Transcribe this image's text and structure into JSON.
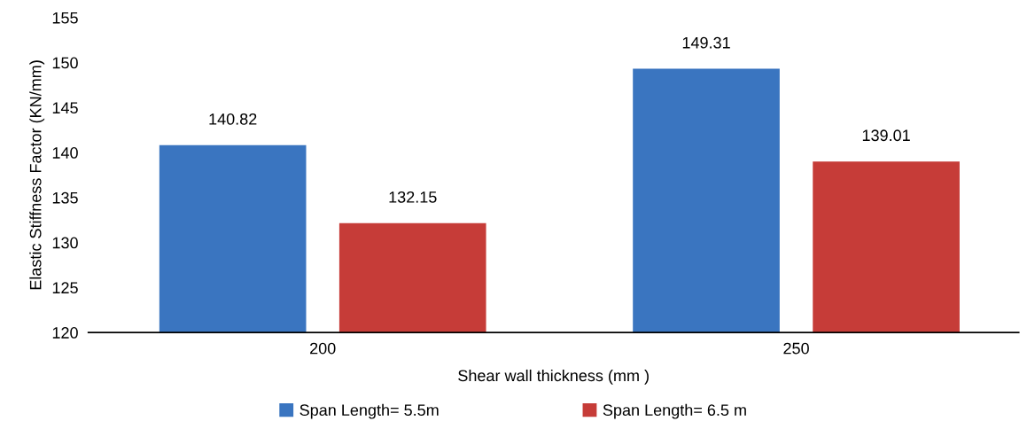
{
  "chart_data": {
    "type": "bar",
    "xlabel": "Shear wall thickness (mm )",
    "ylabel": "Elastic Stiffness Factor (KN/mm)",
    "categories": [
      "200",
      "250"
    ],
    "series": [
      {
        "name": "Span Length= 5.5m",
        "color": "#3a75c0",
        "values": [
          140.82,
          149.31
        ]
      },
      {
        "name": "Span Length= 6.5 m",
        "color": "#c63c38",
        "values": [
          132.15,
          139.01
        ]
      }
    ],
    "ylim": [
      120,
      155
    ],
    "yticks": [
      120,
      125,
      130,
      135,
      140,
      145,
      150,
      155
    ],
    "grid": false,
    "legend": "bottom",
    "data_labels": true
  }
}
